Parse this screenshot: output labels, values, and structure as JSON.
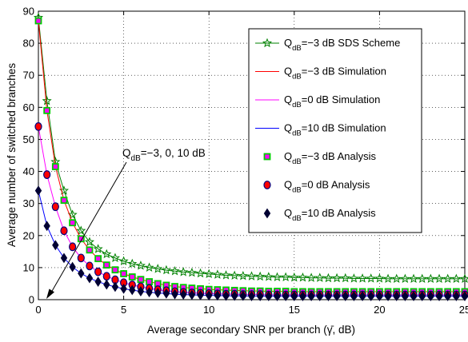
{
  "chart_data": {
    "type": "line",
    "xlabel": "Average secondary SNR per branch (γ̄, dB)",
    "ylabel": "Average number of switched branches",
    "xlim": [
      0,
      25
    ],
    "ylim": [
      0,
      90
    ],
    "xticks": [
      "0",
      "5",
      "10",
      "15",
      "20",
      "25"
    ],
    "yticks": [
      "0",
      "10",
      "20",
      "30",
      "40",
      "50",
      "60",
      "70",
      "80",
      "90"
    ],
    "grid": true,
    "legend_position": "top-right",
    "annotation": {
      "prefix": "Q",
      "subscript": "dB",
      "suffix": "=−3, 0, 10 dB"
    },
    "series": [
      {
        "name": "Q_dB=−3 dB SDS Scheme",
        "label_prefix": "Q",
        "label_sub": "dB",
        "label_suffix": "=−3 dB SDS Scheme",
        "color": "#008000",
        "marker": "star",
        "marker_face": "none",
        "line": true,
        "legend_line": true,
        "x": [
          0,
          0.5,
          1,
          1.5,
          2,
          2.5,
          3,
          3.5,
          4,
          4.5,
          5,
          5.5,
          6,
          6.5,
          7,
          7.5,
          8,
          8.5,
          9,
          9.5,
          10,
          10.5,
          11,
          11.5,
          12,
          12.5,
          13,
          13.5,
          14,
          14.5,
          15,
          15.5,
          16,
          16.5,
          17,
          17.5,
          18,
          18.5,
          19,
          19.5,
          20,
          20.5,
          21,
          21.5,
          22,
          22.5,
          23,
          23.5,
          24,
          24.5,
          25
        ],
        "values": [
          88,
          62,
          43,
          34,
          26.5,
          21.5,
          18,
          15.8,
          14.2,
          13,
          12,
          11.2,
          10.6,
          10,
          9.6,
          9.2,
          8.9,
          8.6,
          8.4,
          8.2,
          8,
          7.8,
          7.6,
          7.5,
          7.4,
          7.3,
          7.2,
          7.1,
          7,
          7,
          6.9,
          6.9,
          6.8,
          6.8,
          6.7,
          6.7,
          6.7,
          6.6,
          6.6,
          6.6,
          6.6,
          6.5,
          6.5,
          6.5,
          6.5,
          6.5,
          6.5,
          6.5,
          6.5,
          6.5,
          6.5
        ]
      },
      {
        "name": "Q_dB=−3 dB Simulation",
        "label_prefix": "Q",
        "label_sub": "dB",
        "label_suffix": "=−3 dB Simulation",
        "color": "#ff0000",
        "marker": "none",
        "line": true,
        "legend_line": true,
        "x": [
          0,
          0.5,
          1,
          1.5,
          2,
          2.5,
          3,
          3.5,
          4,
          4.5,
          5,
          5.5,
          6,
          6.5,
          7,
          7.5,
          8,
          8.5,
          9,
          9.5,
          10,
          10.5,
          11,
          11.5,
          12,
          12.5,
          13,
          13.5,
          14,
          14.5,
          15,
          15.5,
          16,
          16.5,
          17,
          17.5,
          18,
          18.5,
          19,
          19.5,
          20,
          20.5,
          21,
          21.5,
          22,
          22.5,
          23,
          23.5,
          24,
          24.5,
          25
        ],
        "values": [
          87,
          59,
          41.5,
          31,
          24,
          19,
          15.5,
          12.8,
          10.8,
          9.3,
          8.1,
          7.1,
          6.3,
          5.6,
          5,
          4.5,
          4.1,
          3.8,
          3.6,
          3.4,
          3.2,
          3.1,
          3,
          2.9,
          2.8,
          2.7,
          2.7,
          2.6,
          2.6,
          2.6,
          2.5,
          2.5,
          2.5,
          2.5,
          2.5,
          2.5,
          2.5,
          2.5,
          2.5,
          2.5,
          2.5,
          2.5,
          2.5,
          2.5,
          2.5,
          2.5,
          2.5,
          2.5,
          2.5,
          2.5,
          2.5
        ]
      },
      {
        "name": "Q_dB=0 dB Simulation",
        "label_prefix": "Q",
        "label_sub": "dB",
        "label_suffix": "=0 dB Simulation",
        "color": "#ff00ff",
        "marker": "none",
        "line": true,
        "legend_line": true,
        "x": [
          0,
          0.5,
          1,
          1.5,
          2,
          2.5,
          3,
          3.5,
          4,
          4.5,
          5,
          5.5,
          6,
          6.5,
          7,
          7.5,
          8,
          8.5,
          9,
          9.5,
          10,
          10.5,
          11,
          11.5,
          12,
          12.5,
          13,
          13.5,
          14,
          14.5,
          15,
          15.5,
          16,
          16.5,
          17,
          17.5,
          18,
          18.5,
          19,
          19.5,
          20,
          20.5,
          21,
          21.5,
          22,
          22.5,
          23,
          23.5,
          24,
          24.5,
          25
        ],
        "values": [
          54,
          39,
          29,
          21.5,
          16.5,
          13,
          10.5,
          8.7,
          7.3,
          6.2,
          5.3,
          4.6,
          4,
          3.5,
          3.1,
          2.8,
          2.5,
          2.3,
          2.1,
          2,
          1.9,
          1.8,
          1.7,
          1.7,
          1.6,
          1.6,
          1.6,
          1.5,
          1.5,
          1.5,
          1.5,
          1.5,
          1.5,
          1.5,
          1.5,
          1.5,
          1.5,
          1.5,
          1.5,
          1.5,
          1.5,
          1.5,
          1.5,
          1.5,
          1.5,
          1.5,
          1.5,
          1.5,
          1.5,
          1.5,
          1.5
        ]
      },
      {
        "name": "Q_dB=10 dB Simulation",
        "label_prefix": "Q",
        "label_sub": "dB",
        "label_suffix": "=10 dB Simulation",
        "color": "#0000ff",
        "marker": "none",
        "line": true,
        "legend_line": true,
        "x": [
          0,
          0.5,
          1,
          1.5,
          2,
          2.5,
          3,
          3.5,
          4,
          4.5,
          5,
          5.5,
          6,
          6.5,
          7,
          7.5,
          8,
          8.5,
          9,
          9.5,
          10,
          10.5,
          11,
          11.5,
          12,
          12.5,
          13,
          13.5,
          14,
          14.5,
          15,
          15.5,
          16,
          16.5,
          17,
          17.5,
          18,
          18.5,
          19,
          19.5,
          20,
          20.5,
          21,
          21.5,
          22,
          22.5,
          23,
          23.5,
          24,
          24.5,
          25
        ],
        "values": [
          34,
          23,
          17,
          13,
          10.2,
          8.2,
          6.7,
          5.6,
          4.7,
          4,
          3.4,
          3,
          2.6,
          2.3,
          2.1,
          1.9,
          1.7,
          1.6,
          1.5,
          1.4,
          1.3,
          1.3,
          1.2,
          1.2,
          1.2,
          1.1,
          1.1,
          1.1,
          1.1,
          1.1,
          1.1,
          1.1,
          1.1,
          1.1,
          1.1,
          1.1,
          1.1,
          1.1,
          1.1,
          1.1,
          1.1,
          1.1,
          1.1,
          1.1,
          1.1,
          1.1,
          1.1,
          1.1,
          1.1,
          1.1,
          1.1
        ]
      },
      {
        "name": "Q_dB=−3 dB Analysis",
        "label_prefix": "Q",
        "label_sub": "dB",
        "label_suffix": "=−3 dB Analysis",
        "color": "#ff00ff",
        "marker": "square",
        "marker_face": "#ff00ff",
        "marker_edge": "#00cc00",
        "line": false,
        "legend_line": false,
        "x": [
          0,
          0.5,
          1,
          1.5,
          2,
          2.5,
          3,
          3.5,
          4,
          4.5,
          5,
          5.5,
          6,
          6.5,
          7,
          7.5,
          8,
          8.5,
          9,
          9.5,
          10,
          10.5,
          11,
          11.5,
          12,
          12.5,
          13,
          13.5,
          14,
          14.5,
          15,
          15.5,
          16,
          16.5,
          17,
          17.5,
          18,
          18.5,
          19,
          19.5,
          20,
          20.5,
          21,
          21.5,
          22,
          22.5,
          23,
          23.5,
          24,
          24.5,
          25
        ],
        "values": [
          87,
          59,
          41.5,
          31,
          24,
          19,
          15.5,
          12.8,
          10.8,
          9.3,
          8.1,
          7.1,
          6.3,
          5.6,
          5,
          4.5,
          4.1,
          3.8,
          3.6,
          3.4,
          3.2,
          3.1,
          3,
          2.9,
          2.8,
          2.7,
          2.7,
          2.6,
          2.6,
          2.6,
          2.5,
          2.5,
          2.5,
          2.5,
          2.5,
          2.5,
          2.5,
          2.5,
          2.5,
          2.5,
          2.5,
          2.5,
          2.5,
          2.5,
          2.5,
          2.5,
          2.5,
          2.5,
          2.5,
          2.5,
          2.5
        ]
      },
      {
        "name": "Q_dB=0 dB Analysis",
        "label_prefix": "Q",
        "label_sub": "dB",
        "label_suffix": "=0 dB Analysis",
        "color": "#ff0000",
        "marker": "circle",
        "marker_face": "#ff0000",
        "marker_edge": "#000080",
        "line": false,
        "legend_line": false,
        "x": [
          0,
          0.5,
          1,
          1.5,
          2,
          2.5,
          3,
          3.5,
          4,
          4.5,
          5,
          5.5,
          6,
          6.5,
          7,
          7.5,
          8,
          8.5,
          9,
          9.5,
          10,
          10.5,
          11,
          11.5,
          12,
          12.5,
          13,
          13.5,
          14,
          14.5,
          15,
          15.5,
          16,
          16.5,
          17,
          17.5,
          18,
          18.5,
          19,
          19.5,
          20,
          20.5,
          21,
          21.5,
          22,
          22.5,
          23,
          23.5,
          24,
          24.5,
          25
        ],
        "values": [
          54,
          39,
          29,
          21.5,
          16.5,
          13,
          10.5,
          8.7,
          7.3,
          6.2,
          5.3,
          4.6,
          4,
          3.5,
          3.1,
          2.8,
          2.5,
          2.3,
          2.1,
          2,
          1.9,
          1.8,
          1.7,
          1.7,
          1.6,
          1.6,
          1.6,
          1.5,
          1.5,
          1.5,
          1.5,
          1.5,
          1.5,
          1.5,
          1.5,
          1.5,
          1.5,
          1.5,
          1.5,
          1.5,
          1.5,
          1.5,
          1.5,
          1.5,
          1.5,
          1.5,
          1.5,
          1.5,
          1.5,
          1.5,
          1.5
        ]
      },
      {
        "name": "Q_dB=10 dB Analysis",
        "label_prefix": "Q",
        "label_sub": "dB",
        "label_suffix": "=10 dB Analysis",
        "color": "#000033",
        "marker": "diamond",
        "marker_face": "#000033",
        "marker_edge": "#000033",
        "line": false,
        "legend_line": false,
        "x": [
          0,
          0.5,
          1,
          1.5,
          2,
          2.5,
          3,
          3.5,
          4,
          4.5,
          5,
          5.5,
          6,
          6.5,
          7,
          7.5,
          8,
          8.5,
          9,
          9.5,
          10,
          10.5,
          11,
          11.5,
          12,
          12.5,
          13,
          13.5,
          14,
          14.5,
          15,
          15.5,
          16,
          16.5,
          17,
          17.5,
          18,
          18.5,
          19,
          19.5,
          20,
          20.5,
          21,
          21.5,
          22,
          22.5,
          23,
          23.5,
          24,
          24.5,
          25
        ],
        "values": [
          34,
          23,
          17,
          13,
          10.2,
          8.2,
          6.7,
          5.6,
          4.7,
          4,
          3.4,
          3,
          2.6,
          2.3,
          2.1,
          1.9,
          1.7,
          1.6,
          1.5,
          1.4,
          1.3,
          1.3,
          1.2,
          1.2,
          1.2,
          1.1,
          1.1,
          1.1,
          1.1,
          1.1,
          1.1,
          1.1,
          1.1,
          1.1,
          1.1,
          1.1,
          1.1,
          1.1,
          1.1,
          1.1,
          1.1,
          1.1,
          1.1,
          1.1,
          1.1,
          1.1,
          1.1,
          1.1,
          1.1,
          1.1,
          1.1
        ]
      }
    ]
  }
}
